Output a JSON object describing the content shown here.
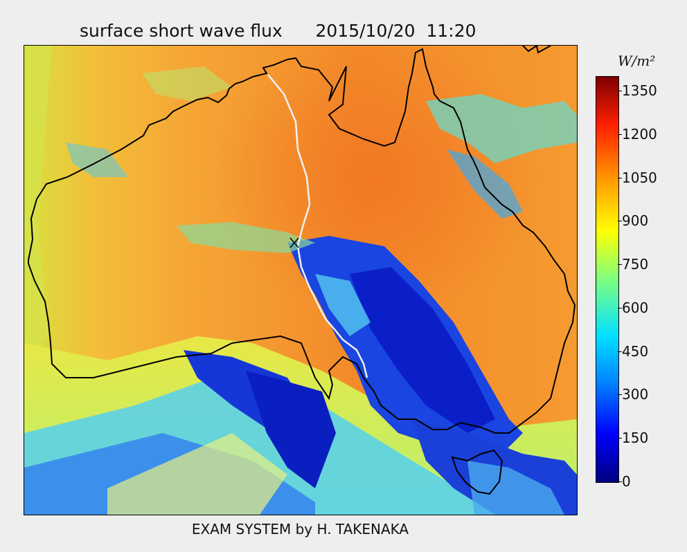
{
  "title": "surface short wave flux      2015/10/20  11:20",
  "footer": "EXAM SYSTEM by H. TAKENAKA",
  "colorbar": {
    "unit": "W/m²",
    "ticks": [
      "1350",
      "1200",
      "1050",
      "900",
      "750",
      "600",
      "450",
      "300",
      "150",
      "0"
    ],
    "colormap": "jet",
    "range": [
      0,
      1400
    ]
  },
  "colors": {
    "background": "#eeeeee",
    "land_high_flux": "#f5882a",
    "cloud_low_flux": "#0a1fd8",
    "coastline": "#000000",
    "track": "#f0f0f0"
  }
}
